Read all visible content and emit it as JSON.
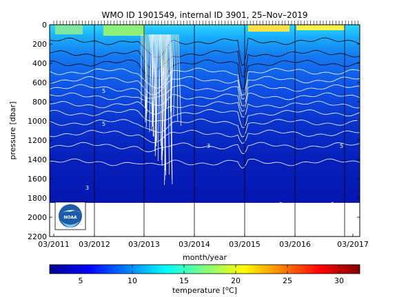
{
  "chart_data": {
    "type": "heatmap",
    "title": "WMO ID 1901549, internal ID 3901, 25–Nov–2019",
    "xlabel": "month/year",
    "ylabel": "pressure [dbar]",
    "x_ticks": [
      "03/2011",
      "03/2012",
      "03/2013",
      "03/2014",
      "03/2015",
      "03/2016",
      "03/2017"
    ],
    "y_ticks": [
      0,
      200,
      400,
      600,
      800,
      1000,
      1200,
      1400,
      1600,
      1800,
      2000,
      2200
    ],
    "ylim": [
      0,
      2200
    ],
    "y_reversed": true,
    "data_max_pressure": 1850,
    "colorbar": {
      "label": "temperature [°C]",
      "label_prefix": "temperature [",
      "label_unit": "C]",
      "ticks": [
        5,
        10,
        15,
        20,
        25,
        30
      ],
      "range": [
        2,
        32
      ],
      "colormap": "jet"
    },
    "contour_labels": [
      "3",
      "3",
      "3",
      "3",
      "5",
      "5",
      "5"
    ],
    "logo_text": "NOAA",
    "colors": {
      "deep": "#0616b8",
      "mid": "#0a3ee0",
      "surface_warm": "#9ef04a",
      "surface_hot": "#ffd800"
    }
  }
}
